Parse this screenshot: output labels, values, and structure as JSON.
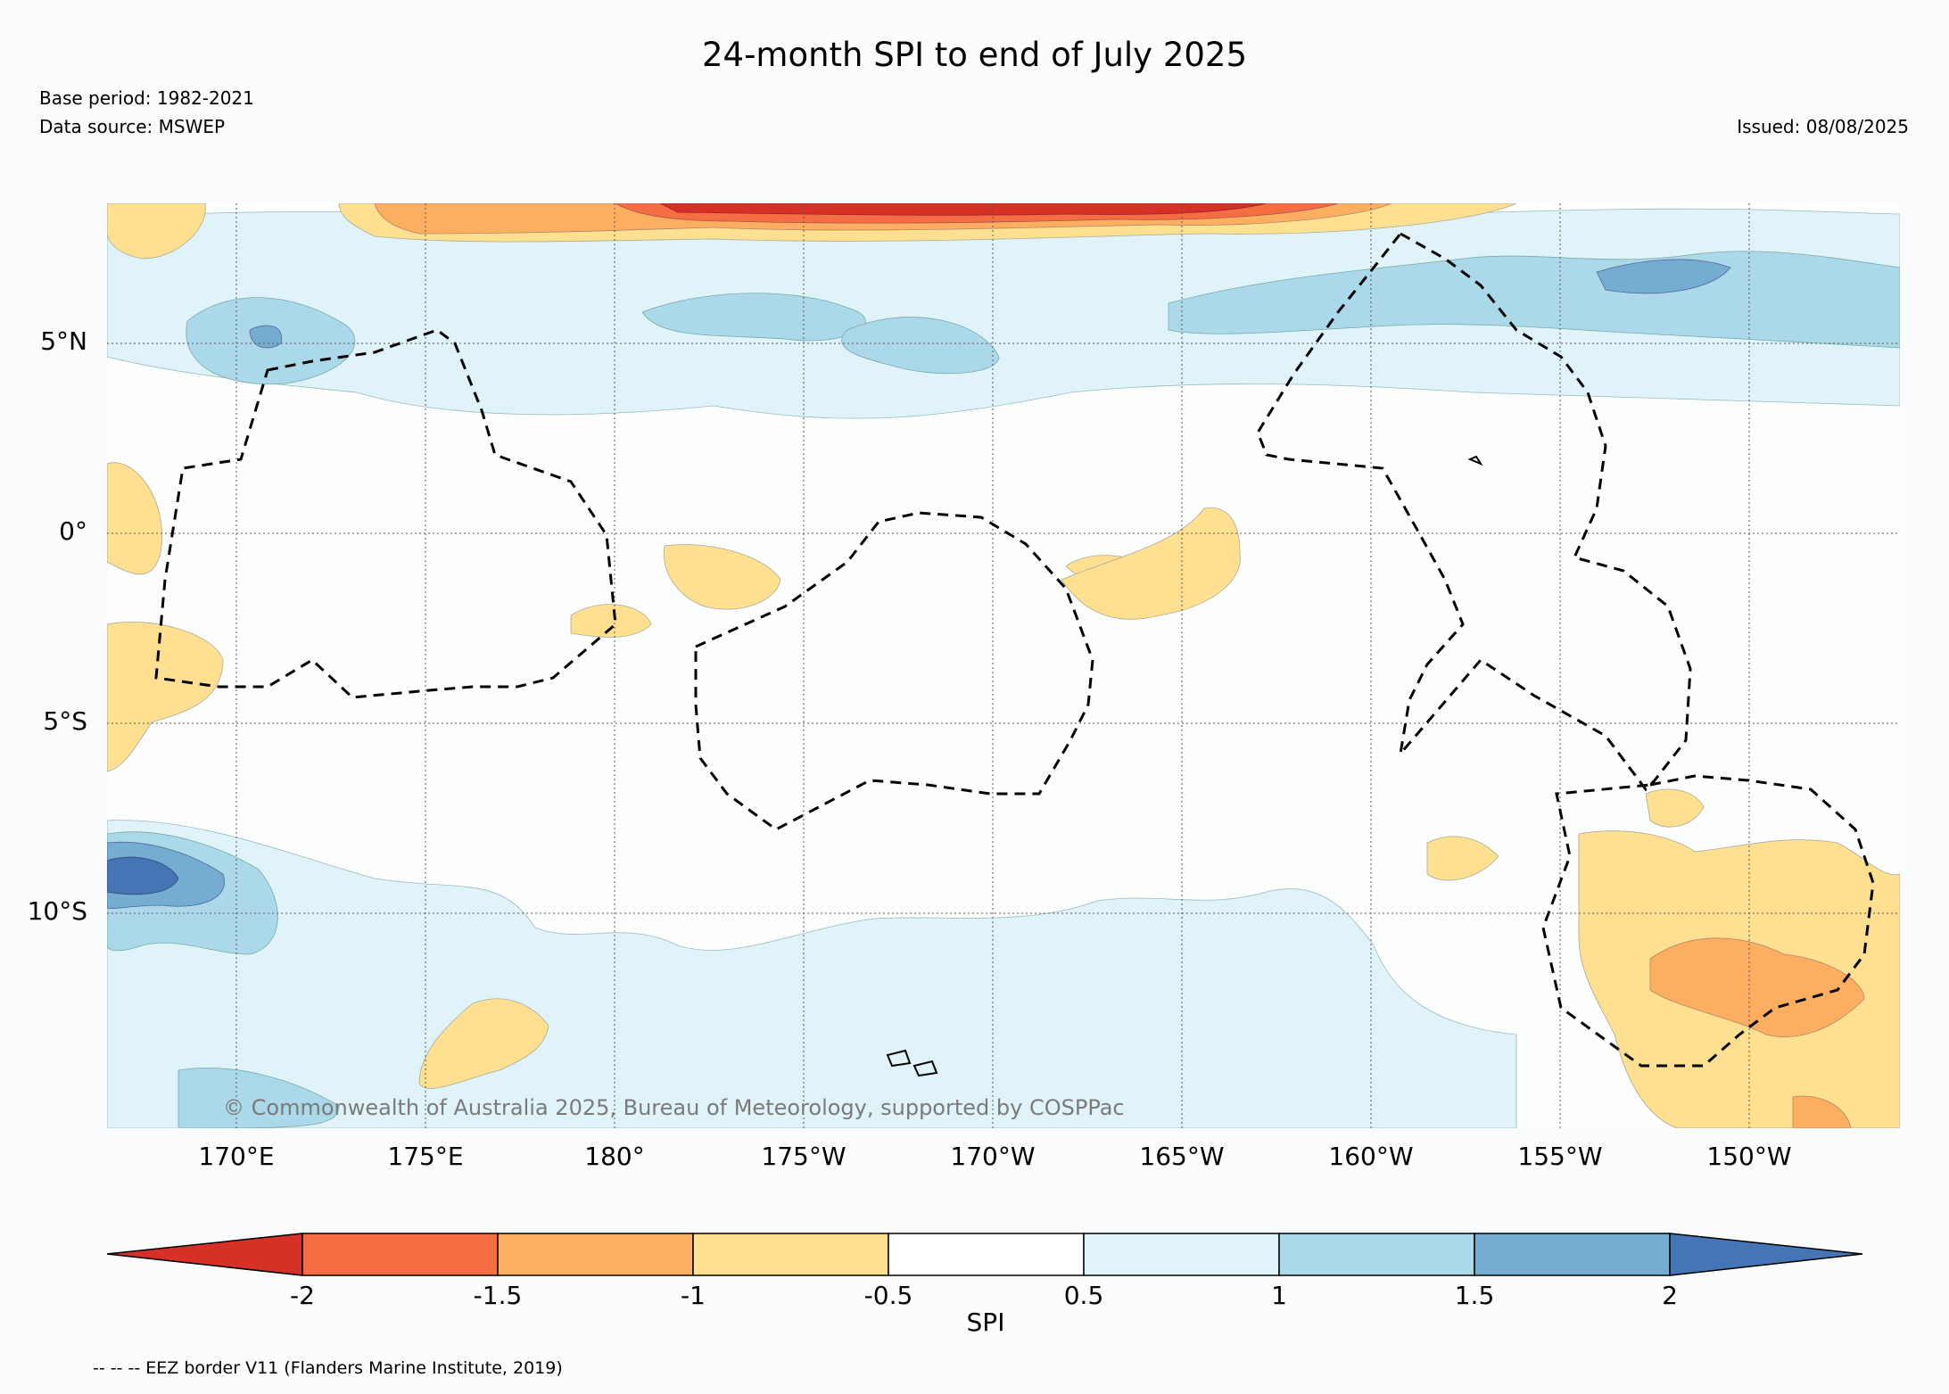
{
  "title": "24-month SPI to end of July 2025",
  "base_period": "Base period: 1982-2021",
  "data_source": "Data source: MSWEP",
  "issued": "Issued: 08/08/2025",
  "copyright": "© Commonwealth of Australia 2025, Bureau of Meteorology, supported by COSPPac",
  "footnote": "-- -- -- EEZ border V11 (Flanders Marine Institute, 2019)",
  "map": {
    "lat_labels": [
      "5°N",
      "0°",
      "5°S",
      "10°S"
    ],
    "lon_labels": [
      "170°E",
      "175°E",
      "180°",
      "175°W",
      "170°W",
      "165°W",
      "160°W",
      "155°W",
      "150°W"
    ],
    "gridlines": "dotted",
    "border_style": "dashed",
    "fill_colors": {
      "below_-2": "#d73027",
      "-2_to_-1.5": "#f46d43",
      "-1.5_to_-1": "#fdae61",
      "-1_to_-0.5": "#fee090",
      "-0.5_to_0.5": "#fdfefe",
      "0.5_to_1": "#e0f3f8",
      "1_to_1.5": "#abd9e9",
      "1.5_to_2": "#74add1",
      "above_2": "#4575b4"
    }
  },
  "colorbar": {
    "title": "SPI",
    "tick_labels": [
      "-2",
      "-1.5",
      "-1",
      "-0.5",
      "0.5",
      "1",
      "1.5",
      "2"
    ],
    "colors": [
      "#d73027",
      "#f46d43",
      "#fdae61",
      "#fee090",
      "#ffffff",
      "#e0f3f8",
      "#abd9e9",
      "#74add1",
      "#4575b4"
    ]
  }
}
